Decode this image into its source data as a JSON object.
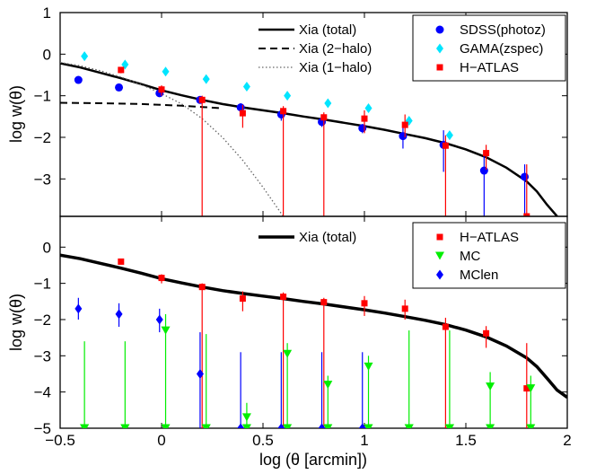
{
  "chart_data": [
    {
      "type": "line",
      "panel": "top",
      "xlabel": "",
      "ylabel": "log w(θ)",
      "xlim": [
        -0.5,
        2.0
      ],
      "ylim": [
        -3.9,
        1.0
      ],
      "yticks": [
        "1",
        "0",
        "−1",
        "−2",
        "−3"
      ],
      "ytick_values": [
        1,
        0,
        -1,
        -2,
        -3
      ],
      "grid": false,
      "legends": [
        {
          "placement": "top-center",
          "entries": [
            "Xia (total)",
            "Xia (2−halo)",
            "Xia (1−halo)"
          ]
        },
        {
          "placement": "top-right",
          "entries": [
            "SDSS(photoz)",
            "GAMA(zspec)",
            "H−ATLAS"
          ]
        }
      ],
      "series": [
        {
          "name": "Xia (total)",
          "style": "solid-thick",
          "color": "#000000",
          "x": [
            -0.5,
            -0.4,
            -0.3,
            -0.2,
            -0.1,
            0.0,
            0.1,
            0.2,
            0.3,
            0.4,
            0.5,
            0.6,
            0.7,
            0.8,
            0.9,
            1.0,
            1.1,
            1.2,
            1.3,
            1.4,
            1.5,
            1.6,
            1.7,
            1.8,
            1.85,
            1.9,
            1.95
          ],
          "y": [
            -0.22,
            -0.32,
            -0.45,
            -0.58,
            -0.72,
            -0.87,
            -0.99,
            -1.1,
            -1.2,
            -1.28,
            -1.35,
            -1.42,
            -1.5,
            -1.57,
            -1.65,
            -1.73,
            -1.82,
            -1.92,
            -2.02,
            -2.14,
            -2.29,
            -2.48,
            -2.73,
            -3.06,
            -3.3,
            -3.62,
            -3.9
          ]
        },
        {
          "name": "Xia (2−halo)",
          "style": "dashed",
          "color": "#000000",
          "x": [
            -0.5,
            -0.3,
            -0.1,
            0.0,
            0.1,
            0.2,
            0.3
          ],
          "y": [
            -1.17,
            -1.18,
            -1.2,
            -1.22,
            -1.24,
            -1.27,
            -1.3
          ]
        },
        {
          "name": "Xia (1−halo)",
          "style": "dotted",
          "color": "#666666",
          "x": [
            -0.5,
            -0.4,
            -0.3,
            -0.2,
            -0.1,
            0.0,
            0.1,
            0.2,
            0.3,
            0.4,
            0.5,
            0.6
          ],
          "y": [
            -0.2,
            -0.28,
            -0.4,
            -0.55,
            -0.73,
            -0.95,
            -1.2,
            -1.55,
            -2.0,
            -2.55,
            -3.2,
            -3.9
          ]
        },
        {
          "name": "SDSS(photoz)",
          "type": "scatter",
          "marker": "circle",
          "color": "#0000ff",
          "x": [
            -0.41,
            -0.21,
            -0.01,
            0.19,
            0.39,
            0.59,
            0.79,
            0.99,
            1.19,
            1.39,
            1.59,
            1.79
          ],
          "y": [
            -0.62,
            -0.8,
            -0.94,
            -1.1,
            -1.28,
            -1.45,
            -1.63,
            -1.78,
            -1.97,
            -2.18,
            -2.8,
            -2.95
          ],
          "err_low": [
            0,
            0,
            0,
            0,
            0.12,
            0.15,
            0.12,
            0.12,
            0.3,
            0.65,
            1.2,
            1.0
          ],
          "err_high": [
            0,
            0,
            0,
            0,
            0.1,
            0.12,
            0.1,
            0.1,
            0.2,
            0.35,
            0.4,
            0.3
          ]
        },
        {
          "name": "GAMA(zspec)",
          "type": "scatter",
          "marker": "diamond",
          "color": "#00e5ff",
          "x": [
            -0.38,
            -0.18,
            0.02,
            0.22,
            0.42,
            0.62,
            0.82,
            1.02,
            1.22,
            1.42
          ],
          "y": [
            -0.05,
            -0.25,
            -0.42,
            -0.6,
            -0.78,
            -1.0,
            -1.18,
            -1.3,
            -1.6,
            -1.95
          ],
          "err_low": [
            0,
            0,
            0,
            0,
            0,
            0,
            0,
            0,
            0,
            0
          ],
          "err_high": [
            0,
            0,
            0,
            0,
            0,
            0,
            0,
            0,
            0,
            0
          ]
        },
        {
          "name": "H−ATLAS",
          "type": "scatter",
          "marker": "square",
          "color": "#ff0000",
          "x": [
            -0.2,
            0.0,
            0.2,
            0.4,
            0.6,
            0.8,
            1.0,
            1.2,
            1.4,
            1.6,
            1.8
          ],
          "y": [
            -0.38,
            -0.85,
            -1.1,
            -1.42,
            -1.37,
            -1.52,
            -1.55,
            -1.7,
            -2.2,
            -2.38,
            -3.9
          ],
          "err_low": [
            0.08,
            0.15,
            2.8,
            0.35,
            2.53,
            2.38,
            0.35,
            0.3,
            1.7,
            0.4,
            0
          ],
          "err_high": [
            0.06,
            0.1,
            0.1,
            0.2,
            0.12,
            0.12,
            0.2,
            0.25,
            0.25,
            0.2,
            1.25
          ]
        }
      ]
    },
    {
      "type": "line",
      "panel": "bottom",
      "xlabel": "log (θ [arcmin])",
      "ylabel": "log w(θ)",
      "xlim": [
        -0.5,
        2.0
      ],
      "ylim": [
        -5.0,
        0.85
      ],
      "xticks": [
        "−0.5",
        "0",
        "0.5",
        "1",
        "1.5",
        "2"
      ],
      "xtick_values": [
        -0.5,
        0.0,
        0.5,
        1.0,
        1.5,
        2.0
      ],
      "yticks": [
        "0",
        "−1",
        "−2",
        "−3",
        "−4",
        "−5"
      ],
      "ytick_values": [
        0,
        -1,
        -2,
        -3,
        -4,
        -5
      ],
      "grid": false,
      "legends": [
        {
          "placement": "top-center",
          "entries": [
            "Xia (total)"
          ]
        },
        {
          "placement": "top-right",
          "entries": [
            "H−ATLAS",
            "MC",
            "MClen"
          ]
        }
      ],
      "series": [
        {
          "name": "Xia (total)",
          "style": "solid-thick",
          "color": "#000000",
          "x": [
            -0.5,
            -0.4,
            -0.3,
            -0.2,
            -0.1,
            0.0,
            0.1,
            0.2,
            0.3,
            0.4,
            0.5,
            0.6,
            0.7,
            0.8,
            0.9,
            1.0,
            1.1,
            1.2,
            1.3,
            1.4,
            1.5,
            1.6,
            1.7,
            1.8,
            1.85,
            1.9,
            1.95,
            2.0
          ],
          "y": [
            -0.22,
            -0.32,
            -0.45,
            -0.58,
            -0.72,
            -0.87,
            -0.99,
            -1.1,
            -1.2,
            -1.28,
            -1.35,
            -1.42,
            -1.5,
            -1.57,
            -1.65,
            -1.73,
            -1.82,
            -1.92,
            -2.02,
            -2.14,
            -2.29,
            -2.48,
            -2.73,
            -3.06,
            -3.3,
            -3.62,
            -3.95,
            -4.15
          ]
        },
        {
          "name": "H−ATLAS",
          "type": "scatter",
          "marker": "square",
          "color": "#ff0000",
          "x": [
            -0.2,
            0.0,
            0.2,
            0.4,
            0.6,
            0.8,
            1.0,
            1.2,
            1.4,
            1.6,
            1.8
          ],
          "y": [
            -0.4,
            -0.85,
            -1.1,
            -1.42,
            -1.37,
            -1.52,
            -1.55,
            -1.7,
            -2.2,
            -2.38,
            -3.9
          ],
          "err_low": [
            0.08,
            0.15,
            3.9,
            0.35,
            3.63,
            3.48,
            0.35,
            0.3,
            2.8,
            0.4,
            1.1
          ],
          "err_high": [
            0.06,
            0.1,
            0.1,
            0.2,
            0.12,
            0.12,
            0.2,
            0.25,
            0.25,
            0.2,
            1.25
          ]
        },
        {
          "name": "MC",
          "type": "scatter",
          "marker": "triangle-down",
          "color": "#00ee00",
          "x": [
            -0.38,
            -0.18,
            0.02,
            0.22,
            0.42,
            0.62,
            0.82,
            1.02,
            1.22,
            1.42,
            1.62,
            1.82,
            -0.38,
            -0.18,
            0.02,
            0.22,
            0.42,
            0.62,
            0.82,
            1.02,
            1.22,
            1.42,
            1.62,
            1.82
          ],
          "y": [
            -5.0,
            -5.0,
            -2.3,
            -5.0,
            -4.7,
            -2.95,
            -3.8,
            -3.3,
            -5.0,
            -5.0,
            -3.85,
            -3.9,
            -5.0,
            -5.0,
            -5.0,
            -5.0,
            -5.0,
            -5.0,
            -5.0,
            -5.0,
            -5.0,
            -5.0,
            -5.0,
            -5.0
          ],
          "err_low": [
            0,
            0,
            2.7,
            0,
            0.3,
            2.05,
            1.2,
            1.7,
            0,
            0,
            1.15,
            1.1,
            0,
            0,
            0,
            0,
            0,
            0,
            0,
            0,
            0,
            0,
            0,
            0
          ],
          "err_high": [
            2.4,
            2.4,
            0.45,
            2.6,
            0.4,
            0.3,
            0.25,
            0.3,
            2.7,
            2.7,
            0.4,
            0.35,
            0,
            0,
            0,
            0,
            0,
            0,
            0,
            0,
            0,
            0,
            0,
            0
          ]
        },
        {
          "name": "MClen",
          "type": "scatter",
          "marker": "diamond",
          "color": "#0000ff",
          "x": [
            -0.41,
            -0.21,
            -0.01,
            0.19,
            0.39,
            0.59,
            0.79,
            0.99
          ],
          "y": [
            -1.7,
            -1.85,
            -2.0,
            -3.5,
            -5.0,
            -5.0,
            -5.0,
            -5.0
          ],
          "err_low": [
            0.3,
            0.35,
            0.35,
            1.5,
            0,
            0,
            0,
            0
          ],
          "err_high": [
            0.3,
            0.3,
            0.3,
            1.15,
            2.1,
            2.1,
            2.1,
            2.1
          ]
        }
      ]
    }
  ]
}
